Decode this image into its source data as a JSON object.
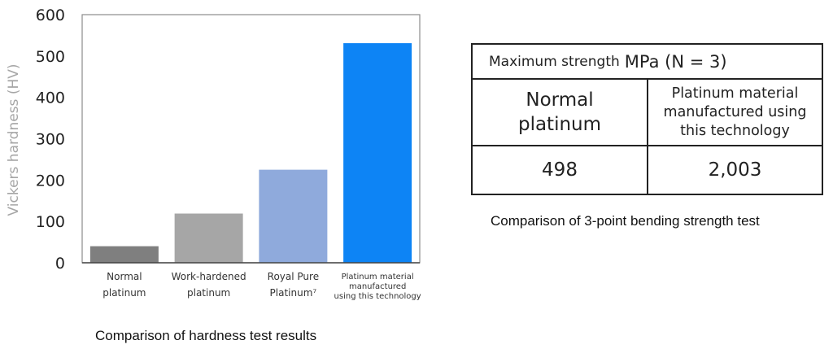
{
  "chart_data": {
    "type": "bar",
    "categories": [
      [
        "Normal",
        "platinum"
      ],
      [
        "Work-hardened",
        "platinum"
      ],
      [
        "Royal Pure",
        "Platinum⁷"
      ],
      [
        "Platinum material",
        "manufactured",
        "using this technology"
      ]
    ],
    "values": [
      40,
      119,
      225,
      531
    ],
    "bar_colors": [
      "#7f7f7f",
      "#a6a6a6",
      "#8faadc",
      "#0d84f5"
    ],
    "ylabel": "Vickers hardness (HV)",
    "ylim": [
      0,
      600
    ],
    "yticks": [
      "0",
      "100",
      "200",
      "300",
      "400",
      "500",
      "600"
    ],
    "grid": false,
    "caption": "Comparison of hardness test results"
  },
  "table": {
    "title_prefix": "Maximum strength",
    "title_unit": "MPa (N = 3)",
    "header_col1": "Normal platinum",
    "header_col2": "Platinum material manufactured using this technology",
    "value_col1": "498",
    "value_col2": "2,003",
    "caption": "Comparison of 3-point bending strength test"
  }
}
